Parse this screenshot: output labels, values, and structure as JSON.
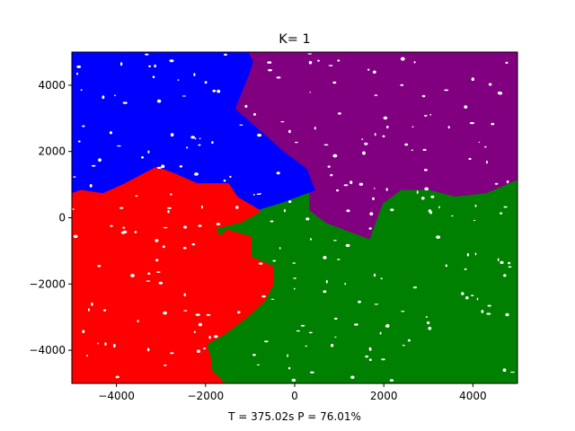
{
  "chart_data": {
    "type": "heatmap",
    "title": "K= 1",
    "xlabel": "T = 375.02s P = 76.01%",
    "ylabel": "",
    "xlim": [
      -5000,
      5000
    ],
    "ylim": [
      -5000,
      5000
    ],
    "x_ticks": [
      -4000,
      -2000,
      0,
      2000,
      4000
    ],
    "y_ticks": [
      -4000,
      -2000,
      0,
      2000,
      4000
    ],
    "x_tick_labels": [
      "−4000",
      "−2000",
      "0",
      "2000",
      "4000"
    ],
    "y_tick_labels": [
      "−4000",
      "−2000",
      "0",
      "2000",
      "4000"
    ],
    "grid": false,
    "legend": "none",
    "regions": [
      {
        "color": "#0000ff",
        "polygon": [
          [
            -5000,
            5000
          ],
          [
            -1000,
            5000
          ],
          [
            -900,
            4700
          ],
          [
            -1000,
            4300
          ],
          [
            -1300,
            3300
          ],
          [
            -700,
            2600
          ],
          [
            -200,
            2000
          ],
          [
            300,
            1500
          ],
          [
            500,
            800
          ],
          [
            300,
            700
          ],
          [
            -300,
            400
          ],
          [
            -800,
            200
          ],
          [
            -1300,
            600
          ],
          [
            -1500,
            1000
          ],
          [
            -2200,
            1000
          ],
          [
            -2700,
            1300
          ],
          [
            -3100,
            1500
          ],
          [
            -3800,
            1000
          ],
          [
            -4300,
            700
          ],
          [
            -4800,
            800
          ],
          [
            -5000,
            700
          ]
        ]
      },
      {
        "color": "#800080",
        "polygon": [
          [
            -1000,
            5000
          ],
          [
            5000,
            5000
          ],
          [
            5000,
            1100
          ],
          [
            4300,
            700
          ],
          [
            3600,
            600
          ],
          [
            3000,
            800
          ],
          [
            2400,
            800
          ],
          [
            2000,
            400
          ],
          [
            1700,
            -700
          ],
          [
            1300,
            -500
          ],
          [
            700,
            -200
          ],
          [
            300,
            200
          ],
          [
            300,
            700
          ],
          [
            500,
            800
          ],
          [
            300,
            1500
          ],
          [
            -200,
            2000
          ],
          [
            -700,
            2600
          ],
          [
            -1300,
            3300
          ],
          [
            -1000,
            4300
          ],
          [
            -900,
            4700
          ]
        ]
      },
      {
        "color": "#008000",
        "polygon": [
          [
            -800,
            200
          ],
          [
            -300,
            400
          ],
          [
            300,
            700
          ],
          [
            300,
            200
          ],
          [
            700,
            -200
          ],
          [
            1300,
            -500
          ],
          [
            1700,
            -700
          ],
          [
            2000,
            400
          ],
          [
            2400,
            800
          ],
          [
            3000,
            800
          ],
          [
            3600,
            600
          ],
          [
            4300,
            700
          ],
          [
            5000,
            1100
          ],
          [
            5000,
            -5000
          ],
          [
            -1600,
            -5000
          ],
          [
            -1900,
            -4600
          ],
          [
            -1900,
            -4300
          ],
          [
            -2000,
            -3800
          ],
          [
            -1600,
            -3500
          ],
          [
            -1100,
            -3000
          ],
          [
            -700,
            -2500
          ],
          [
            -500,
            -2000
          ],
          [
            -500,
            -1500
          ],
          [
            -1000,
            -1200
          ],
          [
            -1000,
            -600
          ],
          [
            -1500,
            -400
          ],
          [
            -1700,
            -600
          ],
          [
            -1800,
            -300
          ],
          [
            -1200,
            -100
          ]
        ]
      },
      {
        "color": "#ff0000",
        "polygon": [
          [
            -5000,
            700
          ],
          [
            -4800,
            800
          ],
          [
            -4300,
            700
          ],
          [
            -3800,
            1000
          ],
          [
            -3100,
            1500
          ],
          [
            -2700,
            1300
          ],
          [
            -2200,
            1000
          ],
          [
            -1500,
            1000
          ],
          [
            -1300,
            600
          ],
          [
            -800,
            200
          ],
          [
            -1200,
            -100
          ],
          [
            -1800,
            -300
          ],
          [
            -1700,
            -600
          ],
          [
            -1500,
            -400
          ],
          [
            -1000,
            -600
          ],
          [
            -1000,
            -1200
          ],
          [
            -500,
            -1500
          ],
          [
            -500,
            -2000
          ],
          [
            -700,
            -2500
          ],
          [
            -1100,
            -3000
          ],
          [
            -1600,
            -3500
          ],
          [
            -2000,
            -3800
          ],
          [
            -1900,
            -4300
          ],
          [
            -1900,
            -4600
          ],
          [
            -1600,
            -5000
          ],
          [
            -5000,
            -5000
          ]
        ]
      }
    ]
  }
}
